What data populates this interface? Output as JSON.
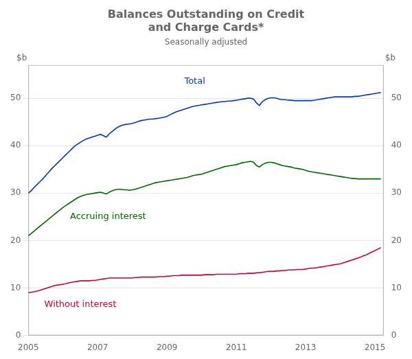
{
  "chart_data": {
    "type": "line",
    "title": [
      "Balances Outstanding on Credit",
      "and Charge Cards*"
    ],
    "subtitle": "Seasonally adjusted",
    "y_label": "$b",
    "y2_label": "$b",
    "xlim": [
      2005.0,
      2015.25
    ],
    "ylim": [
      0,
      57
    ],
    "y2lim": [
      0,
      57
    ],
    "xticks": [
      2005,
      2007,
      2009,
      2011,
      2013,
      2015
    ],
    "yticks": [
      0,
      10,
      20,
      30,
      40,
      50
    ],
    "y2ticks": [
      0,
      10,
      20,
      30,
      40,
      50
    ],
    "grid": "y",
    "x": [
      2005.0,
      2005.083,
      2005.167,
      2005.25,
      2005.333,
      2005.417,
      2005.5,
      2005.583,
      2005.667,
      2005.75,
      2005.833,
      2005.917,
      2006.0,
      2006.083,
      2006.167,
      2006.25,
      2006.333,
      2006.417,
      2006.5,
      2006.583,
      2006.667,
      2006.75,
      2006.833,
      2006.917,
      2007.0,
      2007.083,
      2007.167,
      2007.25,
      2007.333,
      2007.417,
      2007.5,
      2007.583,
      2007.667,
      2007.75,
      2007.833,
      2007.917,
      2008.0,
      2008.083,
      2008.167,
      2008.25,
      2008.333,
      2008.417,
      2008.5,
      2008.583,
      2008.667,
      2008.75,
      2008.833,
      2008.917,
      2009.0,
      2009.083,
      2009.167,
      2009.25,
      2009.333,
      2009.417,
      2009.5,
      2009.583,
      2009.667,
      2009.75,
      2009.833,
      2009.917,
      2010.0,
      2010.083,
      2010.167,
      2010.25,
      2010.333,
      2010.417,
      2010.5,
      2010.583,
      2010.667,
      2010.75,
      2010.833,
      2010.917,
      2011.0,
      2011.083,
      2011.167,
      2011.25,
      2011.333,
      2011.417,
      2011.5,
      2011.583,
      2011.667,
      2011.75,
      2011.833,
      2011.917,
      2012.0,
      2012.083,
      2012.167,
      2012.25,
      2012.333,
      2012.417,
      2012.5,
      2012.583,
      2012.667,
      2012.75,
      2012.833,
      2012.917,
      2013.0,
      2013.083,
      2013.167,
      2013.25,
      2013.333,
      2013.417,
      2013.5,
      2013.583,
      2013.667,
      2013.75,
      2013.833,
      2013.917,
      2014.0,
      2014.083,
      2014.167,
      2014.25,
      2014.333,
      2014.417,
      2014.5,
      2014.583,
      2014.667,
      2014.75,
      2014.833,
      2014.917,
      2015.0,
      2015.083,
      2015.167
    ],
    "series": [
      {
        "name": "Total",
        "color": "#0033CC",
        "values": [
          30.0,
          30.5,
          31.2,
          31.8,
          32.4,
          33.0,
          33.7,
          34.4,
          35.1,
          35.7,
          36.3,
          36.9,
          37.5,
          38.1,
          38.7,
          39.3,
          39.9,
          40.3,
          40.7,
          41.1,
          41.4,
          41.6,
          41.8,
          42.0,
          42.2,
          42.4,
          42.1,
          41.8,
          42.5,
          43.0,
          43.5,
          43.9,
          44.2,
          44.4,
          44.5,
          44.6,
          44.7,
          44.9,
          45.1,
          45.3,
          45.4,
          45.5,
          45.6,
          45.6,
          45.7,
          45.8,
          45.9,
          46.0,
          46.2,
          46.5,
          46.8,
          47.1,
          47.3,
          47.5,
          47.7,
          47.9,
          48.1,
          48.3,
          48.4,
          48.5,
          48.6,
          48.7,
          48.8,
          48.9,
          49.0,
          49.1,
          49.2,
          49.3,
          49.3,
          49.4,
          49.4,
          49.5,
          49.6,
          49.7,
          49.8,
          49.9,
          50.0,
          50.0,
          49.8,
          49.0,
          48.5,
          49.3,
          49.7,
          50.0,
          50.1,
          50.1,
          50.0,
          49.8,
          49.7,
          49.7,
          49.6,
          49.6,
          49.5,
          49.5,
          49.5,
          49.5,
          49.5,
          49.5,
          49.5,
          49.6,
          49.7,
          49.8,
          49.9,
          50.0,
          50.1,
          50.2,
          50.3,
          50.3,
          50.3,
          50.3,
          50.3,
          50.3,
          50.3,
          50.4,
          50.4,
          50.5,
          50.6,
          50.7,
          50.8,
          50.9,
          51.0,
          51.1,
          51.2
        ]
      },
      {
        "name": "Accruing interest",
        "color": "#006600",
        "values": [
          21.0,
          21.5,
          22.0,
          22.5,
          23.0,
          23.5,
          24.0,
          24.5,
          25.0,
          25.5,
          26.0,
          26.5,
          27.0,
          27.4,
          27.8,
          28.2,
          28.6,
          29.0,
          29.3,
          29.5,
          29.7,
          29.8,
          29.9,
          30.0,
          30.1,
          30.2,
          30.0,
          29.8,
          30.2,
          30.5,
          30.7,
          30.8,
          30.8,
          30.7,
          30.7,
          30.6,
          30.7,
          30.8,
          31.0,
          31.2,
          31.4,
          31.6,
          31.8,
          32.0,
          32.2,
          32.3,
          32.4,
          32.5,
          32.6,
          32.7,
          32.8,
          32.9,
          33.0,
          33.1,
          33.2,
          33.3,
          33.5,
          33.7,
          33.8,
          33.9,
          34.0,
          34.2,
          34.4,
          34.6,
          34.8,
          35.0,
          35.2,
          35.4,
          35.6,
          35.7,
          35.8,
          35.9,
          36.0,
          36.2,
          36.4,
          36.5,
          36.6,
          36.7,
          36.5,
          35.8,
          35.5,
          36.0,
          36.3,
          36.5,
          36.5,
          36.4,
          36.2,
          36.0,
          35.8,
          35.7,
          35.6,
          35.5,
          35.3,
          35.2,
          35.1,
          35.0,
          34.8,
          34.6,
          34.5,
          34.4,
          34.3,
          34.2,
          34.1,
          34.0,
          33.9,
          33.8,
          33.7,
          33.6,
          33.5,
          33.4,
          33.3,
          33.2,
          33.1,
          33.1,
          33.0,
          33.0,
          33.0,
          33.0,
          33.0,
          33.0,
          33.0,
          33.0,
          33.0
        ]
      },
      {
        "name": "Without interest",
        "color": "#CC0033",
        "values": [
          9.0,
          9.1,
          9.2,
          9.35,
          9.5,
          9.7,
          9.9,
          10.1,
          10.3,
          10.5,
          10.6,
          10.7,
          10.8,
          10.9,
          11.1,
          11.2,
          11.3,
          11.4,
          11.5,
          11.5,
          11.5,
          11.5,
          11.6,
          11.6,
          11.7,
          11.8,
          11.9,
          12.0,
          12.1,
          12.1,
          12.1,
          12.1,
          12.1,
          12.1,
          12.1,
          12.1,
          12.1,
          12.2,
          12.2,
          12.3,
          12.3,
          12.3,
          12.3,
          12.3,
          12.3,
          12.4,
          12.4,
          12.4,
          12.5,
          12.5,
          12.6,
          12.6,
          12.6,
          12.7,
          12.7,
          12.7,
          12.7,
          12.7,
          12.7,
          12.7,
          12.7,
          12.8,
          12.8,
          12.8,
          12.8,
          12.9,
          12.9,
          12.9,
          12.9,
          12.9,
          12.9,
          12.9,
          12.9,
          13.0,
          13.0,
          13.0,
          13.1,
          13.1,
          13.1,
          13.2,
          13.2,
          13.3,
          13.4,
          13.5,
          13.5,
          13.5,
          13.6,
          13.6,
          13.7,
          13.7,
          13.8,
          13.8,
          13.8,
          13.9,
          13.9,
          13.9,
          14.0,
          14.1,
          14.2,
          14.2,
          14.3,
          14.4,
          14.5,
          14.6,
          14.7,
          14.8,
          14.9,
          15.0,
          15.1,
          15.3,
          15.5,
          15.7,
          15.9,
          16.1,
          16.3,
          16.5,
          16.8,
          17.0,
          17.3,
          17.6,
          17.9,
          18.2,
          18.5
        ]
      }
    ],
    "annotations": [
      {
        "text": "Total",
        "x": 2009.8,
        "y": 53.5,
        "color": "#0033CC"
      },
      {
        "text": "Accruing interest",
        "x": 2007.3,
        "y": 25.0,
        "color": "#006600"
      },
      {
        "text": "Without interest",
        "x": 2006.5,
        "y": 6.5,
        "color": "#CC0033"
      }
    ]
  }
}
